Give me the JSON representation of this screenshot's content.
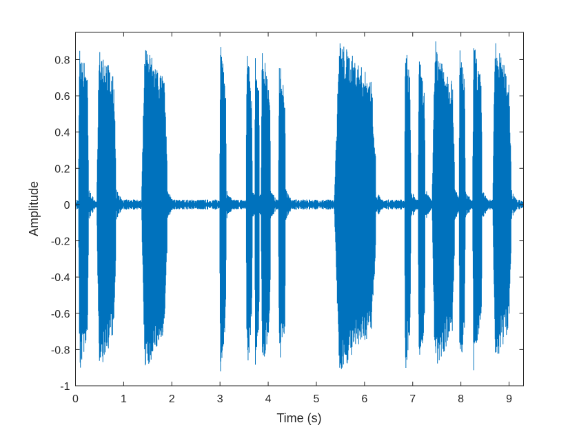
{
  "chart_data": {
    "type": "line",
    "title": "",
    "xlabel": "Time (s)",
    "ylabel": "Amplitude",
    "xlim": [
      0,
      9.3
    ],
    "ylim": [
      -1,
      0.95
    ],
    "xticks": [
      "0",
      "1",
      "2",
      "3",
      "4",
      "5",
      "6",
      "7",
      "8",
      "9"
    ],
    "yticks": [
      "-1",
      "-0.8",
      "-0.6",
      "-0.4",
      "-0.2",
      "0",
      "0.2",
      "0.4",
      "0.6",
      "0.8"
    ],
    "grid": false,
    "line_color": "#0072BD",
    "baseline_noise": 0.02,
    "bursts": [
      {
        "start": 0.06,
        "end": 0.27,
        "max": 0.95,
        "min": -0.98
      },
      {
        "start": 0.44,
        "end": 0.84,
        "max": 0.95,
        "min": -0.98
      },
      {
        "start": 1.37,
        "end": 1.9,
        "max": 0.94,
        "min": -0.97
      },
      {
        "start": 2.99,
        "end": 3.13,
        "max": 0.93,
        "min": -0.97
      },
      {
        "start": 3.54,
        "end": 3.67,
        "max": 0.92,
        "min": -0.97
      },
      {
        "start": 3.72,
        "end": 3.82,
        "max": 0.85,
        "min": -0.95
      },
      {
        "start": 3.85,
        "end": 4.05,
        "max": 0.91,
        "min": -0.97
      },
      {
        "start": 4.21,
        "end": 4.36,
        "max": 0.84,
        "min": -0.97
      },
      {
        "start": 5.37,
        "end": 6.23,
        "max": 0.95,
        "min": -0.97
      },
      {
        "start": 6.83,
        "end": 6.96,
        "max": 0.95,
        "min": -0.97
      },
      {
        "start": 7.11,
        "end": 7.26,
        "max": 0.86,
        "min": -0.96
      },
      {
        "start": 7.4,
        "end": 7.87,
        "max": 0.95,
        "min": -0.97
      },
      {
        "start": 7.96,
        "end": 8.09,
        "max": 0.94,
        "min": -0.97
      },
      {
        "start": 8.24,
        "end": 8.44,
        "max": 0.95,
        "min": -0.96
      },
      {
        "start": 8.66,
        "end": 9.04,
        "max": 0.95,
        "min": -0.93
      }
    ]
  }
}
